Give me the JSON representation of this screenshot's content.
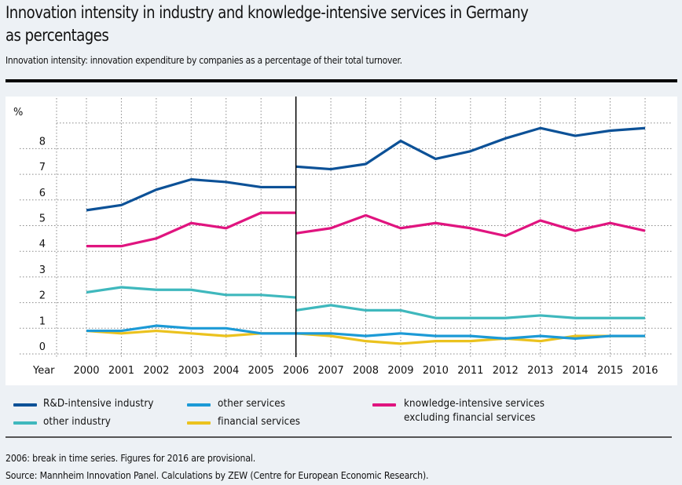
{
  "header": {
    "title_line1": "Innovation intensity in industry and knowledge-intensive services in Germany",
    "title_line2": "as percentages",
    "subtitle": "Innovation intensity: innovation expenditure by companies as a percentage of their total turnover."
  },
  "footer": {
    "note": "2006: break in time series. Figures for 2016 are provisional.",
    "source": "Source: Mannheim Innovation Panel. Calculations by ZEW (Centre for European Economic Research)."
  },
  "chart_data": {
    "type": "line",
    "title": "Innovation intensity in industry and knowledge-intensive services in Germany as percentages",
    "xlabel": "Year",
    "ylabel": "%",
    "x": [
      "2000",
      "2001",
      "2002",
      "2003",
      "2004",
      "2005",
      "2006",
      "2007",
      "2008",
      "2009",
      "2010",
      "2011",
      "2012",
      "2013",
      "2014",
      "2015",
      "2016"
    ],
    "ylim": [
      0,
      9
    ],
    "yticks": [
      "0",
      "1",
      "2",
      "3",
      "4",
      "5",
      "6",
      "7",
      "8"
    ],
    "grid": true,
    "break_year": "2006",
    "break_note": "Series break at 2006: each series has a pre-break value and a post-break value for 2006.",
    "legend_position": "bottom",
    "series": [
      {
        "name": "R&D-intensive industry",
        "color": "#0c5197",
        "before_break": [
          5.6,
          5.8,
          6.4,
          6.8,
          6.7,
          6.5,
          6.5
        ],
        "after_break": [
          7.3,
          7.2,
          7.4,
          8.3,
          7.6,
          7.9,
          8.4,
          8.8,
          8.5,
          8.7,
          8.8
        ]
      },
      {
        "name": "other industry",
        "color": "#3fb8bd",
        "before_break": [
          2.4,
          2.6,
          2.5,
          2.5,
          2.3,
          2.3,
          2.2
        ],
        "after_break": [
          1.7,
          1.9,
          1.7,
          1.7,
          1.4,
          1.4,
          1.4,
          1.5,
          1.4,
          1.4,
          1.4
        ]
      },
      {
        "name": "financial services",
        "color": "#ebc21e",
        "before_break": [
          0.9,
          0.8,
          0.9,
          0.8,
          0.7,
          0.8,
          0.8
        ],
        "after_break": [
          0.8,
          0.7,
          0.5,
          0.4,
          0.5,
          0.5,
          0.6,
          0.5,
          0.7,
          0.7,
          0.7
        ]
      },
      {
        "name": "other services",
        "color": "#1c9ad6",
        "before_break": [
          0.9,
          0.9,
          1.1,
          1.0,
          1.0,
          0.8,
          0.8
        ],
        "after_break": [
          0.8,
          0.8,
          0.7,
          0.8,
          0.7,
          0.7,
          0.6,
          0.7,
          0.6,
          0.7,
          0.7
        ]
      },
      {
        "name": "knowledge-intensive services excluding financial services",
        "color": "#e0147f",
        "before_break": [
          4.2,
          4.2,
          4.5,
          5.1,
          4.9,
          5.5,
          5.5
        ],
        "after_break": [
          4.7,
          4.9,
          5.4,
          4.9,
          5.1,
          4.9,
          4.6,
          5.2,
          4.8,
          5.1,
          4.8
        ]
      }
    ]
  },
  "legend": {
    "rd_industry": "R&D-intensive industry",
    "other_industry": "other industry",
    "other_services": "other services",
    "financial_services": "financial services",
    "kis_line1": "knowledge-intensive services",
    "kis_line2": "excluding financial services"
  }
}
